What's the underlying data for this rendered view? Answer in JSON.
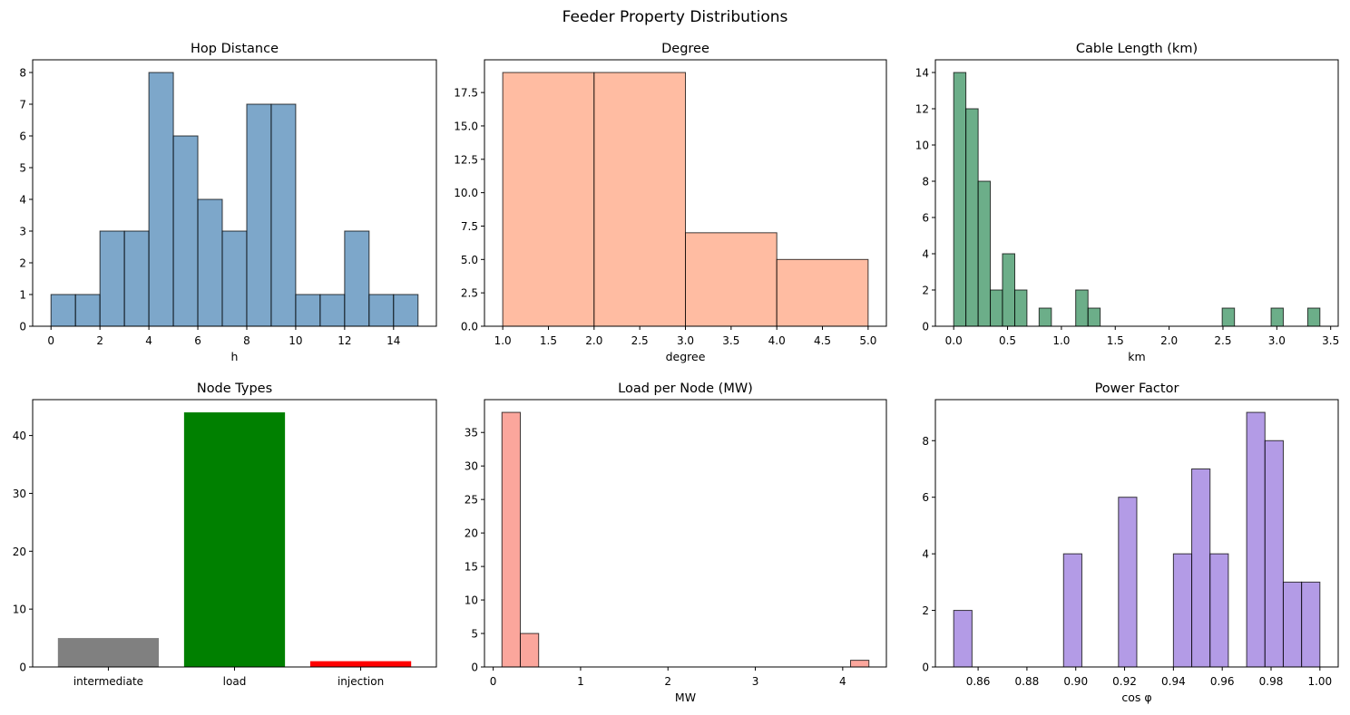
{
  "suptitle": "Feeder Property Distributions",
  "chart_data": [
    {
      "id": "hop",
      "type": "histogram",
      "title": "Hop Distance",
      "xlabel": "h",
      "ylabel": "",
      "xlim": [
        -0.75,
        15.75
      ],
      "ylim": [
        0,
        8.4
      ],
      "xticks": [
        0,
        2,
        4,
        6,
        8,
        10,
        12,
        14
      ],
      "xtick_labels": [
        "0",
        "2",
        "4",
        "6",
        "8",
        "10",
        "12",
        "14"
      ],
      "yticks": [
        0,
        1,
        2,
        3,
        4,
        5,
        6,
        7,
        8
      ],
      "ytick_labels": [
        "0",
        "1",
        "2",
        "3",
        "4",
        "5",
        "6",
        "7",
        "8"
      ],
      "color": "#4682b4",
      "bins": [
        {
          "x0": 0,
          "x1": 1,
          "count": 1
        },
        {
          "x0": 1,
          "x1": 2,
          "count": 1
        },
        {
          "x0": 2,
          "x1": 3,
          "count": 3
        },
        {
          "x0": 3,
          "x1": 4,
          "count": 3
        },
        {
          "x0": 4,
          "x1": 5,
          "count": 8
        },
        {
          "x0": 5,
          "x1": 6,
          "count": 6
        },
        {
          "x0": 6,
          "x1": 7,
          "count": 4
        },
        {
          "x0": 7,
          "x1": 8,
          "count": 3
        },
        {
          "x0": 8,
          "x1": 9,
          "count": 7
        },
        {
          "x0": 9,
          "x1": 10,
          "count": 7
        },
        {
          "x0": 10,
          "x1": 11,
          "count": 1
        },
        {
          "x0": 11,
          "x1": 12,
          "count": 1
        },
        {
          "x0": 12,
          "x1": 13,
          "count": 3
        },
        {
          "x0": 13,
          "x1": 14,
          "count": 1
        },
        {
          "x0": 14,
          "x1": 15,
          "count": 1
        }
      ]
    },
    {
      "id": "degree",
      "type": "histogram",
      "title": "Degree",
      "xlabel": "degree",
      "ylabel": "",
      "xlim": [
        0.8,
        5.2
      ],
      "ylim": [
        0,
        19.95
      ],
      "xticks": [
        1.0,
        1.5,
        2.0,
        2.5,
        3.0,
        3.5,
        4.0,
        4.5,
        5.0
      ],
      "xtick_labels": [
        "1.0",
        "1.5",
        "2.0",
        "2.5",
        "3.0",
        "3.5",
        "4.0",
        "4.5",
        "5.0"
      ],
      "yticks": [
        0,
        2.5,
        5,
        7.5,
        10,
        12.5,
        15,
        17.5
      ],
      "ytick_labels": [
        "0.0",
        "2.5",
        "5.0",
        "7.5",
        "10.0",
        "12.5",
        "15.0",
        "17.5"
      ],
      "color": "#ffa07a",
      "bins": [
        {
          "x0": 1,
          "x1": 2,
          "count": 19
        },
        {
          "x0": 2,
          "x1": 3,
          "count": 19
        },
        {
          "x0": 3,
          "x1": 4,
          "count": 7
        },
        {
          "x0": 4,
          "x1": 5,
          "count": 5
        }
      ]
    },
    {
      "id": "cable",
      "type": "histogram",
      "title": "Cable Length (km)",
      "xlabel": "km",
      "ylabel": "",
      "xlim": [
        -0.17,
        3.57
      ],
      "ylim": [
        0,
        14.7
      ],
      "xticks": [
        0,
        0.5,
        1.0,
        1.5,
        2.0,
        2.5,
        3.0,
        3.5
      ],
      "xtick_labels": [
        "0.0",
        "0.5",
        "1.0",
        "1.5",
        "2.0",
        "2.5",
        "3.0",
        "3.5"
      ],
      "yticks": [
        0,
        2,
        4,
        6,
        8,
        10,
        12,
        14
      ],
      "ytick_labels": [
        "0",
        "2",
        "4",
        "6",
        "8",
        "10",
        "12",
        "14"
      ],
      "color": "#2e8b57",
      "bins": [
        {
          "x0": 0.0,
          "x1": 0.113,
          "count": 14
        },
        {
          "x0": 0.113,
          "x1": 0.227,
          "count": 12
        },
        {
          "x0": 0.227,
          "x1": 0.34,
          "count": 8
        },
        {
          "x0": 0.34,
          "x1": 0.453,
          "count": 2
        },
        {
          "x0": 0.453,
          "x1": 0.567,
          "count": 4
        },
        {
          "x0": 0.567,
          "x1": 0.68,
          "count": 2
        },
        {
          "x0": 0.793,
          "x1": 0.907,
          "count": 1
        },
        {
          "x0": 1.133,
          "x1": 1.247,
          "count": 2
        },
        {
          "x0": 1.247,
          "x1": 1.36,
          "count": 1
        },
        {
          "x0": 2.493,
          "x1": 2.607,
          "count": 1
        },
        {
          "x0": 2.947,
          "x1": 3.06,
          "count": 1
        },
        {
          "x0": 3.287,
          "x1": 3.4,
          "count": 1
        }
      ]
    },
    {
      "id": "nodetypes",
      "type": "bar",
      "title": "Node Types",
      "xlabel": "",
      "ylabel": "",
      "ylim": [
        0,
        46.2
      ],
      "yticks": [
        0,
        10,
        20,
        30,
        40
      ],
      "ytick_labels": [
        "0",
        "10",
        "20",
        "30",
        "40"
      ],
      "categories": [
        "intermediate",
        "load",
        "injection"
      ],
      "values": [
        5,
        44,
        1
      ],
      "colors": [
        "#808080",
        "#008000",
        "#ff0000"
      ]
    },
    {
      "id": "load",
      "type": "histogram",
      "title": "Load per Node (MW)",
      "xlabel": "MW",
      "ylabel": "",
      "xlim": [
        -0.1,
        4.5
      ],
      "ylim": [
        0,
        39.9
      ],
      "xticks": [
        0,
        1,
        2,
        3,
        4
      ],
      "xtick_labels": [
        "0",
        "1",
        "2",
        "3",
        "4"
      ],
      "yticks": [
        0,
        5,
        10,
        15,
        20,
        25,
        30,
        35
      ],
      "ytick_labels": [
        "0",
        "5",
        "10",
        "15",
        "20",
        "25",
        "30",
        "35"
      ],
      "color": "#fa8072",
      "bins": [
        {
          "x0": 0.1,
          "x1": 0.31,
          "count": 38
        },
        {
          "x0": 0.31,
          "x1": 0.52,
          "count": 5
        },
        {
          "x0": 4.09,
          "x1": 4.3,
          "count": 1
        }
      ]
    },
    {
      "id": "pf",
      "type": "histogram",
      "title": "Power Factor",
      "xlabel": "cos φ",
      "ylabel": "",
      "xlim": [
        0.8425,
        1.0075
      ],
      "ylim": [
        0,
        9.45
      ],
      "xticks": [
        0.86,
        0.88,
        0.9,
        0.92,
        0.94,
        0.96,
        0.98,
        1.0
      ],
      "xtick_labels": [
        "0.86",
        "0.88",
        "0.90",
        "0.92",
        "0.94",
        "0.96",
        "0.98",
        "1.00"
      ],
      "yticks": [
        0,
        2,
        4,
        6,
        8
      ],
      "ytick_labels": [
        "0",
        "2",
        "4",
        "6",
        "8"
      ],
      "color": "#9370db",
      "bins": [
        {
          "x0": 0.85,
          "x1": 0.8575,
          "count": 2
        },
        {
          "x0": 0.895,
          "x1": 0.9025,
          "count": 4
        },
        {
          "x0": 0.9175,
          "x1": 0.925,
          "count": 6
        },
        {
          "x0": 0.94,
          "x1": 0.9475,
          "count": 4
        },
        {
          "x0": 0.9475,
          "x1": 0.955,
          "count": 7
        },
        {
          "x0": 0.955,
          "x1": 0.9625,
          "count": 4
        },
        {
          "x0": 0.97,
          "x1": 0.9775,
          "count": 9
        },
        {
          "x0": 0.9775,
          "x1": 0.985,
          "count": 8
        },
        {
          "x0": 0.985,
          "x1": 0.9925,
          "count": 3
        },
        {
          "x0": 0.9925,
          "x1": 1.0,
          "count": 3
        }
      ]
    }
  ]
}
